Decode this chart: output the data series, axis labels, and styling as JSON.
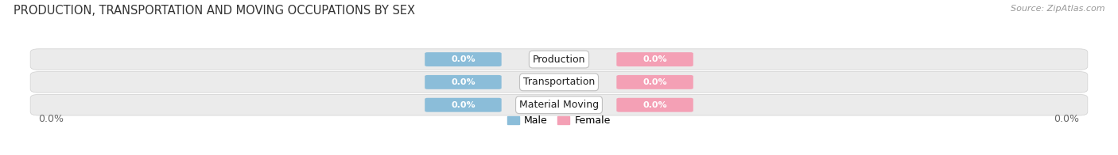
{
  "title": "PRODUCTION, TRANSPORTATION AND MOVING OCCUPATIONS BY SEX",
  "source": "Source: ZipAtlas.com",
  "categories": [
    "Production",
    "Transportation",
    "Material Moving"
  ],
  "male_values": [
    0.0,
    0.0,
    0.0
  ],
  "female_values": [
    0.0,
    0.0,
    0.0
  ],
  "male_color": "#8bbdd9",
  "female_color": "#f4a0b5",
  "bar_bg_color": "#ebebeb",
  "bar_border_color": "#d0d0d0",
  "title_fontsize": 10.5,
  "source_fontsize": 8,
  "tick_label_fontsize": 9,
  "bar_label_fontsize": 8,
  "category_fontsize": 9,
  "x_left_label": "0.0%",
  "x_right_label": "0.0%",
  "legend_male": "Male",
  "legend_female": "Female",
  "figsize": [
    14.06,
    1.96
  ],
  "dpi": 100
}
